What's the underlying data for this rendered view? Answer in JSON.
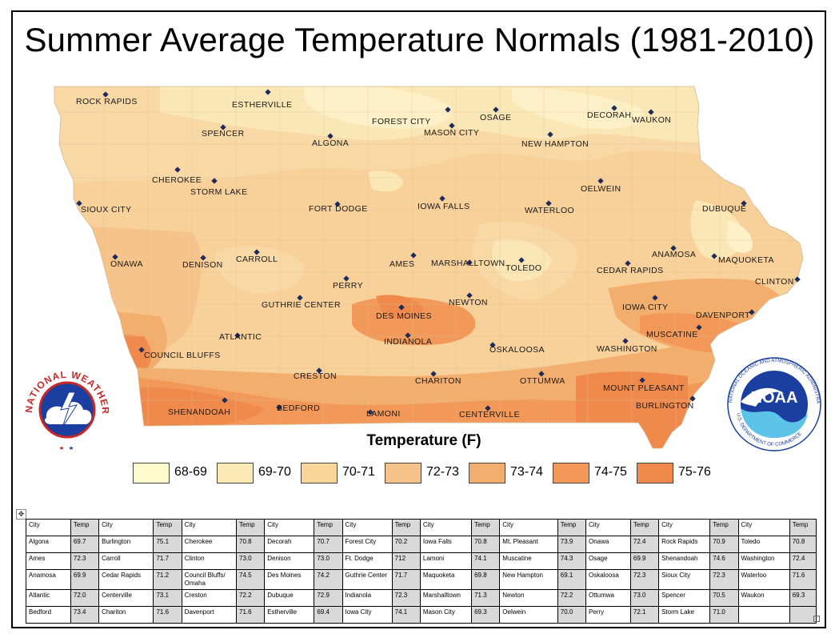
{
  "title": "Summer Average Temperature Normals (1981-2010)",
  "legend": {
    "title": "Temperature (F)",
    "items": [
      {
        "label": "68-69",
        "color": "#fefccc"
      },
      {
        "label": "69-70",
        "color": "#fbe9b4"
      },
      {
        "label": "70-71",
        "color": "#f8d69a"
      },
      {
        "label": "72-73",
        "color": "#f6c38a"
      },
      {
        "label": "73-74",
        "color": "#f3ad6c"
      },
      {
        "label": "74-75",
        "color": "#f29858"
      },
      {
        "label": "75-76",
        "color": "#ef8a4c"
      }
    ]
  },
  "map_cities": [
    "ROCK RAPIDS",
    "ESTHERVILLE",
    "FOREST CITY",
    "OSAGE",
    "DECORAH",
    "WAUKON",
    "SPENCER",
    "ALGONA",
    "MASON CITY",
    "NEW HAMPTON",
    "CHEROKEE",
    "STORM LAKE",
    "OELWEIN",
    "SIOUX CITY",
    "FORT DODGE",
    "IOWA FALLS",
    "WATERLOO",
    "DUBUQUE",
    "ANAMOSA",
    "MAQUOKETA",
    "ONAWA",
    "DENISON",
    "CARROLL",
    "AMES",
    "MARSHALLTOWN",
    "TOLEDO",
    "CEDAR RAPIDS",
    "CLINTON",
    "PERRY",
    "GUTHRIE CENTER",
    "NEWTON",
    "IOWA CITY",
    "DES MOINES",
    "DAVENPORT",
    "ATLANTIC",
    "INDIANOLA",
    "MUSCATINE",
    "COUNCIL BLUFFS",
    "OSKALOOSA",
    "WASHINGTON",
    "CRESTON",
    "CHARITON",
    "OTTUMWA",
    "MOUNT PLEASANT",
    "SHENANDOAH",
    "BEDFORD",
    "LAMONI",
    "CENTERVILLE",
    "BURLINGTON"
  ],
  "logos": {
    "nws": "NATIONAL WEATHER SERVICE",
    "noaa": "NOAA",
    "noaa_ring_top": "NATIONAL OCEANIC AND ATMOSPHERIC ADMINISTRATION",
    "noaa_ring_bottom": "U.S. DEPARTMENT OF COMMERCE"
  },
  "table": {
    "header": [
      "City",
      "Temp",
      "City",
      "Temp",
      "City",
      "Temp",
      "City",
      "Temp",
      "City",
      "Temp",
      "City",
      "Temp",
      "City",
      "Temp",
      "City",
      "Temp",
      "City",
      "Temp",
      "City",
      "Temp"
    ],
    "rows": [
      [
        "Algona",
        "69.7",
        "Burlington",
        "75.1",
        "Cherokee",
        "70.8",
        "Decorah",
        "70.7",
        "Forest City",
        "70.2",
        "Iowa Falls",
        "70.8",
        "Mt. Pleasant",
        "73.9",
        "Onawa",
        "72.4",
        "Rock Rapids",
        "70.9",
        "Toledo",
        "70.8"
      ],
      [
        "Ames",
        "72.3",
        "Carroll",
        "71.7",
        "Clinton",
        "73.0",
        "Denison",
        "73.0",
        "Ft. Dodge",
        "712",
        "Lamoni",
        "74.1",
        "Muscatine",
        "74.3",
        "Osage",
        "69.9",
        "Shenandoah",
        "74.6",
        "Washington",
        "72.4"
      ],
      [
        "Anamosa",
        "69.9",
        "Cedar Rapids",
        "71.2",
        "Council Bluffs/ Omaha",
        "74.5",
        "Des Moines",
        "74.2",
        "Guthrie Center",
        "71.7",
        "Maquoketa",
        "69.8",
        "New Hampton",
        "69.1",
        "Oskaloosa",
        "72.3",
        "Sioux City",
        "72.3",
        "Waterloo",
        "71.6"
      ],
      [
        "Atlantic",
        "72.0",
        "Centerville",
        "73.1",
        "Creston",
        "72.2",
        "Dubuque",
        "72.9",
        "Indianola",
        "72.3",
        "Marshalltown",
        "71.3",
        "Newton",
        "72.2",
        "Ottumwa",
        "73.0",
        "Spencer",
        "70.5",
        "Waukon",
        "69.3"
      ],
      [
        "Bedford",
        "73.4",
        "Chariton",
        "71.6",
        "Davenport",
        "71.6",
        "Estherville",
        "69.4",
        "Iowa City",
        "74.1",
        "Mason City",
        "69.3",
        "Oelwein",
        "70.0",
        "Perry",
        "72.1",
        "Storm Lake",
        "71.0",
        "",
        ""
      ]
    ]
  }
}
